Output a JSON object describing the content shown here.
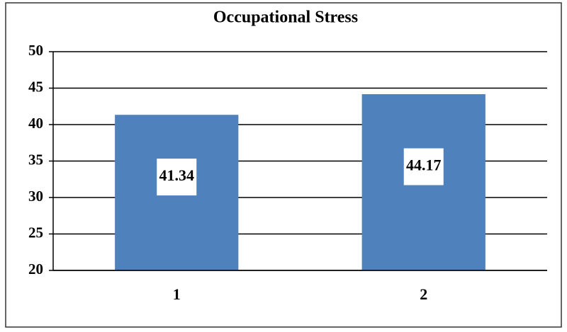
{
  "chart_data": {
    "type": "bar",
    "title": "Occupational Stress",
    "categories": [
      "1",
      "2"
    ],
    "values": [
      41.34,
      44.17
    ],
    "color": "#4f81bd",
    "ylim": [
      20,
      50
    ],
    "yticks": [
      20,
      25,
      30,
      35,
      40,
      45,
      50
    ],
    "grid": true
  }
}
